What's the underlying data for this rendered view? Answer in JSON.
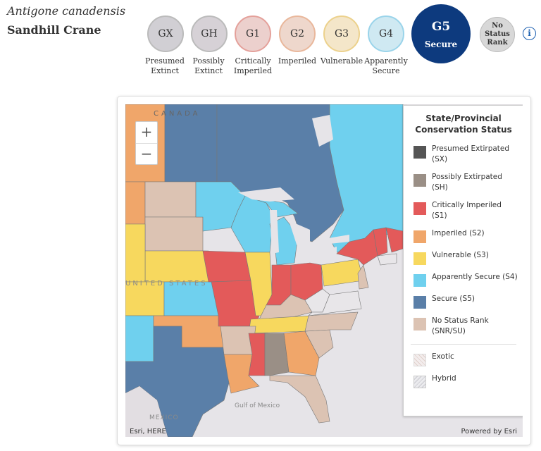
{
  "species": {
    "scientific_name": "Antigone canadensis",
    "common_name": "Sandhill Crane"
  },
  "ranks": [
    {
      "code": "GX",
      "label": "Presumed Extinct",
      "color": "#d1cfd4"
    },
    {
      "code": "GH",
      "label": "Possibly Extinct",
      "color": "#d6d1d6"
    },
    {
      "code": "G1",
      "label": "Critically Imperiled",
      "color": "#ecd0cd"
    },
    {
      "code": "G2",
      "label": "Imperiled",
      "color": "#eed7cc"
    },
    {
      "code": "G3",
      "label": "Vulnerable",
      "color": "#f4e6c9"
    },
    {
      "code": "G4",
      "label": "Apparently Secure",
      "color": "#cfe9f2"
    }
  ],
  "current_rank": {
    "code": "G5",
    "label": "Secure",
    "color": "#0d3a7e"
  },
  "no_status": {
    "label": "No Status Rank"
  },
  "info_icon": "info-icon",
  "map": {
    "labels": {
      "canada": "CANADA",
      "us": "UNITED STATES",
      "mexico": "MEXICO",
      "gulf": "Gulf of Mexico"
    },
    "attribution": "Esri, HERE",
    "powered_by": "Powered by Esri",
    "zoom_in": "+",
    "zoom_out": "−"
  },
  "legend": {
    "title": "State/Provincial Conservation Status",
    "items": [
      {
        "label": "Presumed Extirpated (SX)",
        "color": "#555555"
      },
      {
        "label": "Possibly Extirpated (SH)",
        "color": "#9a8f86"
      },
      {
        "label": "Critically Imperiled (S1)",
        "color": "#e35a5a"
      },
      {
        "label": "Imperiled (S2)",
        "color": "#f0a66a"
      },
      {
        "label": "Vulnerable (S3)",
        "color": "#f7d85e"
      },
      {
        "label": "Apparently Secure (S4)",
        "color": "#6fd0ee"
      },
      {
        "label": "Secure (S5)",
        "color": "#5a7fa8"
      },
      {
        "label": "No Status Rank (SNR/SU)",
        "color": "#dcc3b3"
      }
    ],
    "patterns": [
      {
        "label": "Exotic"
      },
      {
        "label": "Hybrid"
      }
    ]
  }
}
